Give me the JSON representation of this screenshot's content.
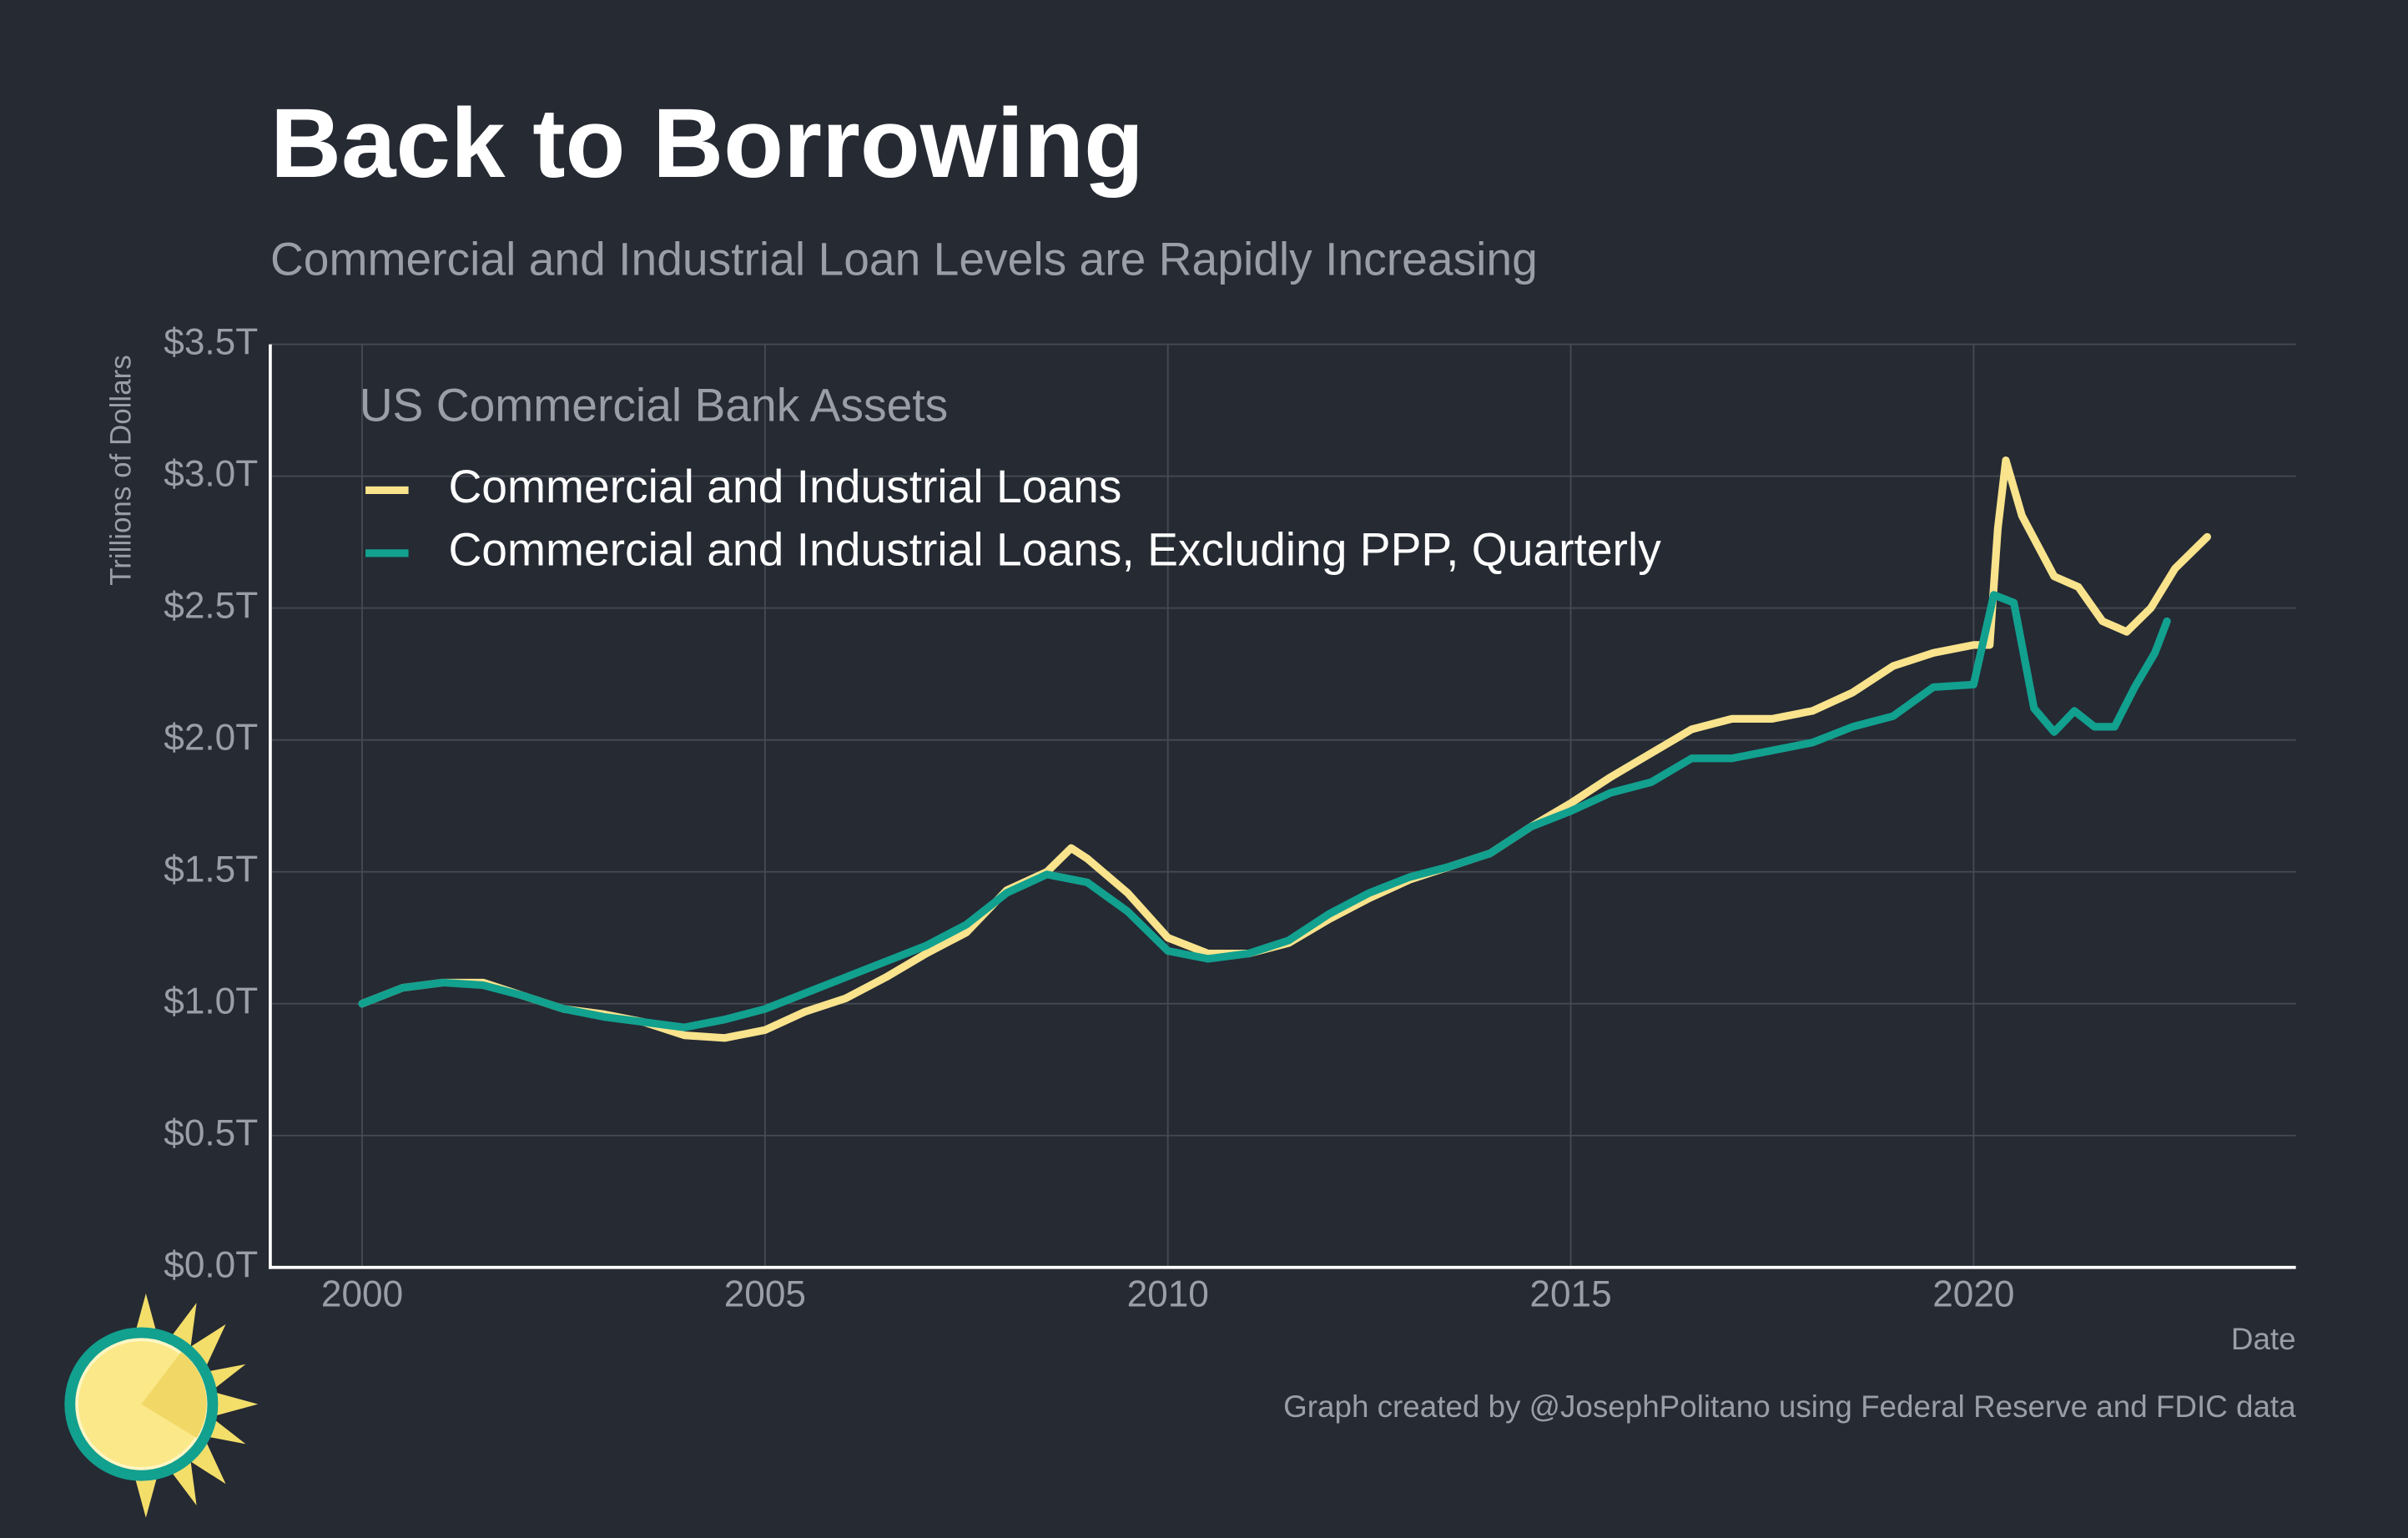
{
  "chart_data": {
    "type": "line",
    "title": "Back to Borrowing",
    "subtitle": "Commercial and Industrial Loan Levels are Rapidly Increasing",
    "y_label": "Trillions of Dollars",
    "x_label": "Date",
    "legend_title": "US Commercial Bank Assets",
    "caption": "Graph created by @JosephPolitano using Federal Reserve and FDIC data",
    "legend": "top-left",
    "grid": true,
    "xlim": [
      1998.86,
      2024.0
    ],
    "xticks": [
      2000,
      2005,
      2010,
      2015,
      2020
    ],
    "ylim": [
      0,
      3.5
    ],
    "yticks": [
      {
        "value": 0,
        "label": "$0.0T"
      },
      {
        "value": 0.5,
        "label": "$0.5T"
      },
      {
        "value": 1,
        "label": "$1.0T"
      },
      {
        "value": 1.5,
        "label": "$1.5T"
      },
      {
        "value": 2,
        "label": "$2.0T"
      },
      {
        "value": 2.5,
        "label": "$2.5T"
      },
      {
        "value": 3,
        "label": "$3.0T"
      },
      {
        "value": 3.5,
        "label": "$3.5T"
      }
    ],
    "series": [
      {
        "name": "Commercial and Industrial Loans",
        "color": "#f9e38c",
        "x": [
          2000,
          2000.5,
          2001,
          2001.5,
          2002,
          2002.5,
          2003,
          2003.5,
          2004,
          2004.5,
          2005,
          2005.5,
          2006,
          2006.5,
          2007,
          2007.5,
          2008,
          2008.5,
          2008.8,
          2009,
          2009.5,
          2010,
          2010.5,
          2011,
          2011.5,
          2012,
          2012.5,
          2013,
          2013.5,
          2014,
          2014.5,
          2015,
          2015.5,
          2016,
          2016.5,
          2017,
          2017.5,
          2018,
          2018.5,
          2019,
          2019.5,
          2020,
          2020.2,
          2020.3,
          2020.4,
          2020.6,
          2021,
          2021.3,
          2021.6,
          2021.9,
          2022.2,
          2022.5,
          2022.9
        ],
        "values": [
          1.0,
          1.06,
          1.08,
          1.08,
          1.03,
          0.98,
          0.96,
          0.93,
          0.88,
          0.87,
          0.9,
          0.97,
          1.02,
          1.1,
          1.19,
          1.27,
          1.43,
          1.5,
          1.59,
          1.55,
          1.42,
          1.25,
          1.19,
          1.19,
          1.23,
          1.32,
          1.4,
          1.47,
          1.52,
          1.57,
          1.67,
          1.76,
          1.86,
          1.95,
          2.04,
          2.08,
          2.08,
          2.11,
          2.18,
          2.28,
          2.33,
          2.36,
          2.36,
          2.8,
          3.06,
          2.85,
          2.62,
          2.58,
          2.45,
          2.41,
          2.5,
          2.65,
          2.77
        ]
      },
      {
        "name": "Commercial and Industrial Loans, Excluding PPP, Quarterly",
        "color": "#12a08f",
        "x": [
          2000,
          2000.5,
          2001,
          2001.5,
          2002,
          2002.5,
          2003,
          2003.5,
          2004,
          2004.5,
          2005,
          2005.5,
          2006,
          2006.5,
          2007,
          2007.5,
          2008,
          2008.5,
          2009,
          2009.5,
          2010,
          2010.5,
          2011,
          2011.5,
          2012,
          2012.5,
          2013,
          2013.5,
          2014,
          2014.5,
          2015,
          2015.5,
          2016,
          2016.5,
          2017,
          2017.5,
          2018,
          2018.5,
          2019,
          2019.5,
          2020,
          2020.25,
          2020.5,
          2020.75,
          2021,
          2021.25,
          2021.5,
          2021.75,
          2022,
          2022.25,
          2022.4
        ],
        "values": [
          1.0,
          1.06,
          1.08,
          1.07,
          1.03,
          0.98,
          0.95,
          0.93,
          0.91,
          0.94,
          0.98,
          1.04,
          1.1,
          1.16,
          1.22,
          1.3,
          1.42,
          1.49,
          1.46,
          1.35,
          1.2,
          1.17,
          1.19,
          1.24,
          1.34,
          1.42,
          1.48,
          1.52,
          1.57,
          1.67,
          1.73,
          1.8,
          1.84,
          1.93,
          1.93,
          1.96,
          1.99,
          2.05,
          2.09,
          2.2,
          2.21,
          2.55,
          2.52,
          2.12,
          2.03,
          2.11,
          2.05,
          2.05,
          2.2,
          2.33,
          2.45
        ]
      }
    ]
  }
}
